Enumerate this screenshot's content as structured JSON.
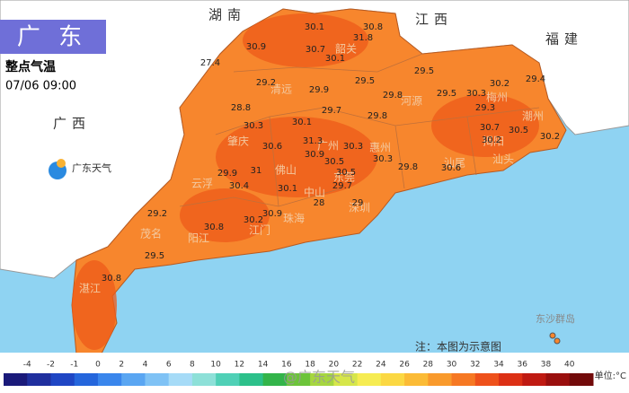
{
  "header": {
    "title": "广 东",
    "subtitle": "整点气温",
    "time": "07/06 09:00",
    "logo": "广东天气"
  },
  "provinces": [
    "湖南",
    "江西",
    "福建",
    "广西"
  ],
  "cities": [
    "韶关",
    "清远",
    "河源",
    "梅州",
    "潮州",
    "肇庆",
    "广州",
    "惠州",
    "汕尾",
    "汕头",
    "揭阳",
    "佛山",
    "东莞",
    "云浮",
    "中山",
    "深圳",
    "珠海",
    "江门",
    "阳江",
    "茂名",
    "湛江"
  ],
  "readings": [
    "30.9",
    "30.1",
    "30.8",
    "30.7",
    "31.8",
    "30.1",
    "27.4",
    "29.2",
    "29.9",
    "29.5",
    "29.5",
    "29.8",
    "29.5",
    "30.3",
    "30.2",
    "29.4",
    "28.8",
    "29.7",
    "29.8",
    "29.3",
    "30.3",
    "30.1",
    "30.6",
    "31.3",
    "30.3",
    "30.7",
    "30.5",
    "30.9",
    "30.5",
    "30.3",
    "29.8",
    "30.6",
    "30.2",
    "30.2",
    "31",
    "29.9",
    "30.5",
    "30.4",
    "30.1",
    "29.7",
    "29",
    "29.2",
    "30.8",
    "30.2",
    "29.5",
    "30.8",
    "28",
    "30.9"
  ],
  "islands": "东沙群岛",
  "note": "注：本图为示意图",
  "watermark": "@广东天气",
  "legend": {
    "labels": [
      "-4",
      "-2",
      "-1",
      "0",
      "2",
      "4",
      "6",
      "8",
      "10",
      "12",
      "14",
      "16",
      "18",
      "20",
      "22",
      "24",
      "26",
      "28",
      "30",
      "32",
      "34",
      "36",
      "38",
      "40"
    ],
    "colors": [
      "#1a1a7a",
      "#1f2f9e",
      "#1f46c4",
      "#2566dc",
      "#3a86ec",
      "#5aa6f2",
      "#7fc2f5",
      "#a6dbf7",
      "#8de0d8",
      "#4fd0b6",
      "#2cc08a",
      "#33b44a",
      "#6cc43a",
      "#a6d640",
      "#d6e64a",
      "#f6ec52",
      "#fbd843",
      "#fbbb36",
      "#f99a2c",
      "#f67823",
      "#ee511b",
      "#dc3015",
      "#bf1a12",
      "#9a0f0e",
      "#720a0a"
    ],
    "unit": "单位:°C"
  }
}
